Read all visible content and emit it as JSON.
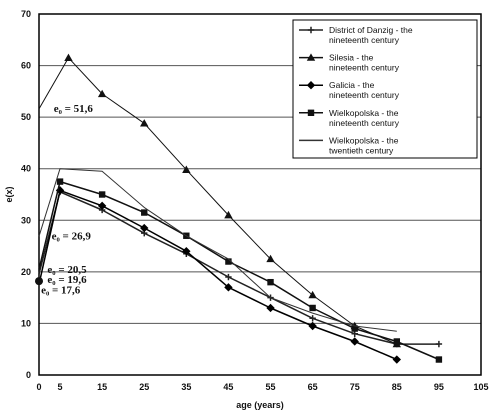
{
  "chart_data": {
    "type": "line",
    "xlabel": "age (years)",
    "ylabel": "e(x)",
    "xlim": [
      0,
      105
    ],
    "ylim": [
      0,
      70
    ],
    "x_ticks": [
      0,
      5,
      15,
      25,
      35,
      45,
      55,
      65,
      75,
      85,
      95,
      105
    ],
    "y_ticks": [
      0,
      10,
      20,
      30,
      40,
      50,
      60,
      70
    ],
    "grid": "horizontal",
    "legend_position": "top-right",
    "series": [
      {
        "name": "District of Danzig - the nineteenth century",
        "color": "#222222",
        "marker": "plus",
        "width": 1.5,
        "x": [
          0,
          5,
          15,
          25,
          35,
          45,
          55,
          65,
          75,
          85,
          95
        ],
        "y": [
          19.6,
          35.5,
          32.0,
          27.5,
          23.5,
          19.0,
          15.0,
          11.0,
          8.0,
          6.0,
          6.0
        ]
      },
      {
        "name": "Silesia - the nineteenth century",
        "color": "#111111",
        "marker": "triangle",
        "width": 1,
        "x": [
          0,
          7,
          15,
          25,
          35,
          45,
          55,
          65,
          75,
          85
        ],
        "y": [
          51.6,
          61.5,
          54.5,
          48.8,
          39.8,
          31.0,
          22.5,
          15.5,
          9.5,
          6.0
        ]
      },
      {
        "name": "Galicia - the nineteenth century",
        "color": "#000000",
        "marker": "diamond",
        "width": 1.5,
        "x": [
          0,
          5,
          15,
          25,
          35,
          45,
          55,
          65,
          75,
          85
        ],
        "y": [
          17.6,
          35.8,
          32.8,
          28.5,
          24.0,
          17.0,
          13.0,
          9.5,
          6.5,
          3.0
        ]
      },
      {
        "name": "Wielkopolska - the nineteenth century",
        "color": "#111111",
        "marker": "square",
        "width": 1.5,
        "x": [
          0,
          5,
          15,
          25,
          35,
          45,
          55,
          65,
          75,
          85,
          95
        ],
        "y": [
          20.5,
          37.5,
          35.0,
          31.5,
          27.0,
          22.0,
          18.0,
          13.0,
          9.0,
          6.5,
          3.0
        ]
      },
      {
        "name": "Wielkopolska - the twentieth century",
        "color": "#333333",
        "marker": "none",
        "width": 1,
        "x": [
          0,
          5,
          15,
          25,
          35,
          45,
          55,
          65,
          75,
          85
        ],
        "y": [
          26.9,
          40.0,
          39.5,
          32.5,
          27.0,
          22.5,
          15.0,
          12.0,
          9.5,
          8.5
        ]
      }
    ],
    "annotations": [
      {
        "text": "e₀ = 51,6",
        "x": 3.5,
        "y": 51.0
      },
      {
        "text": "e₀ = 26,9",
        "x": 3.0,
        "y": 26.3
      },
      {
        "text": "e₀ = 20,5",
        "x": 2.0,
        "y": 19.8
      },
      {
        "text": "e₀ = 19,6",
        "x": 2.0,
        "y": 17.8
      },
      {
        "text": "e₀ = 17,6",
        "x": 0.5,
        "y": 15.8
      }
    ]
  }
}
